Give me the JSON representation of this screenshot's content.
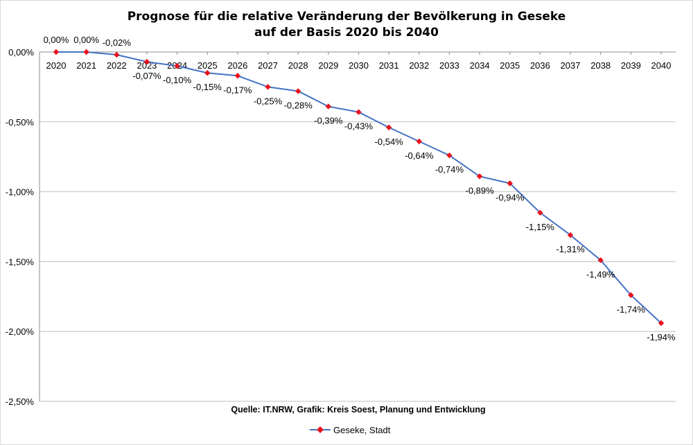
{
  "chart_data": {
    "type": "line",
    "title": "Prognose für die relative Veränderung der Bevölkerung in Geseke",
    "subtitle": "auf der Basis 2020 bis 2040",
    "source": "Quelle: IT.NRW, Grafik: Kreis Soest, Planung und Entwicklung",
    "categories": [
      "2020",
      "2021",
      "2022",
      "2023",
      "2024",
      "2025",
      "2026",
      "2027",
      "2028",
      "2029",
      "2030",
      "2031",
      "2032",
      "2033",
      "2034",
      "2035",
      "2036",
      "2037",
      "2038",
      "2039",
      "2040"
    ],
    "series": [
      {
        "name": "Geseke, Stadt",
        "values": [
          0.0,
          0.0,
          -0.02,
          -0.07,
          -0.1,
          -0.15,
          -0.17,
          -0.25,
          -0.28,
          -0.39,
          -0.43,
          -0.54,
          -0.64,
          -0.74,
          -0.89,
          -0.94,
          -1.15,
          -1.31,
          -1.49,
          -1.74,
          -1.94
        ],
        "data_labels": [
          "0,00%",
          "0,00%",
          "-0,02%",
          "-0,07%",
          "-0,10%",
          "-0,15%",
          "-0,17%",
          "-0,25%",
          "-0,28%",
          "-0,39%",
          "-0,43%",
          "-0,54%",
          "-0,64%",
          "-0,74%",
          "-0,89%",
          "-0,94%",
          "-1,15%",
          "-1,31%",
          "-1,49%",
          "-1,74%",
          "-1,94%"
        ],
        "line_color": "#4472c4",
        "marker_color": "#e8141e"
      }
    ],
    "yticks": [
      0,
      -0.5,
      -1.0,
      -1.5,
      -2.0,
      -2.5
    ],
    "ytick_labels": [
      "0,00%",
      "-0,50%",
      "-1,00%",
      "-1,50%",
      "-2,00%",
      "-2,50%"
    ],
    "ylim": [
      -2.5,
      0
    ],
    "grid": true,
    "gridline_color": "#bfbfbf",
    "legend": "bottom-center"
  }
}
